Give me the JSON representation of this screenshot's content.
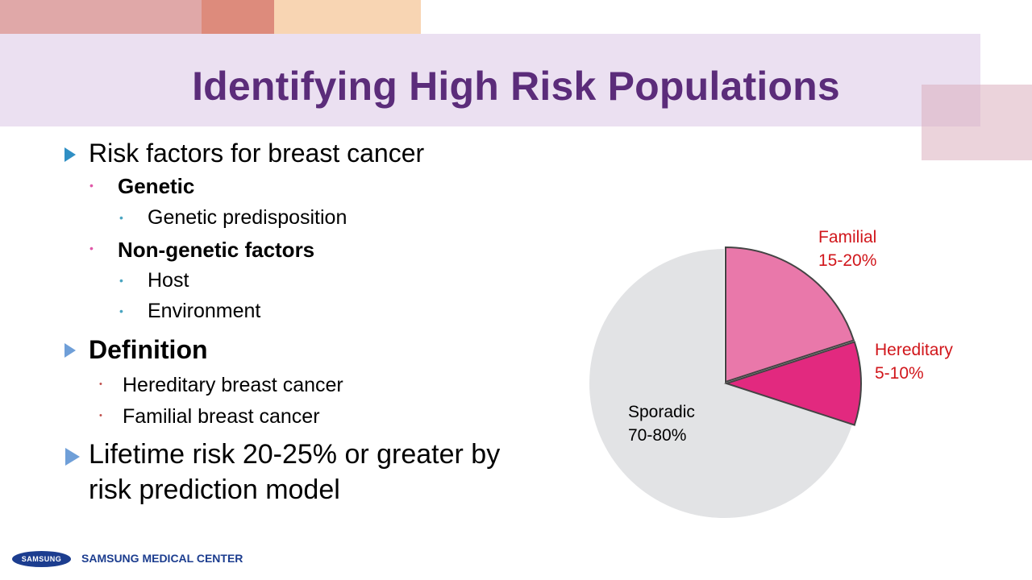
{
  "title": "Identifying High Risk Populations",
  "colors": {
    "title": "#5b2c7a",
    "band": "#ebe0f1",
    "bullet_primary": "#2f8fc4",
    "bullet_magenta": "#e058a8",
    "bullet_teal": "#4aa5c1",
    "bullet_red": "#c0504d",
    "label_red": "#d1161b"
  },
  "bullets": {
    "b1": {
      "text": "Risk factors for breast cancer",
      "icon": "triangle-bullet-icon"
    },
    "b1_1": {
      "text": "Genetic",
      "icon": "dot-bullet-icon"
    },
    "b1_1_1": {
      "text": "Genetic predisposition",
      "icon": "dot-bullet-icon"
    },
    "b1_2": {
      "text": "Non-genetic factors",
      "icon": "dot-bullet-icon"
    },
    "b1_2_1": {
      "text": "Host",
      "icon": "dot-bullet-icon"
    },
    "b1_2_2": {
      "text": "Environment",
      "icon": "dot-bullet-icon"
    },
    "b2": {
      "text": "Definition",
      "icon": "triangle-bullet-icon"
    },
    "b2_1": {
      "text": "Hereditary breast cancer",
      "icon": "dot-bullet-icon"
    },
    "b2_2": {
      "text": "Familial breast cancer",
      "icon": "dot-bullet-icon"
    },
    "b3_line1": "Lifetime risk 20-25% or greater by",
    "b3_line2": "risk prediction model"
  },
  "chart_data": {
    "type": "pie",
    "title": "",
    "slices": [
      {
        "name": "Familial",
        "label": "15-20%",
        "value": 20,
        "color": "#e978aa"
      },
      {
        "name": "Hereditary",
        "label": "5-10%",
        "value": 10,
        "color": "#e2297f"
      },
      {
        "name": "Sporadic",
        "label": "70-80%",
        "value": 70,
        "color": "#e2e3e5"
      }
    ],
    "exploded": [
      "Familial",
      "Hereditary"
    ],
    "start_angle": "12 o'clock, clockwise"
  },
  "footer": {
    "logo_text": "SAMSUNG",
    "org_name": "SAMSUNG MEDICAL CENTER"
  }
}
